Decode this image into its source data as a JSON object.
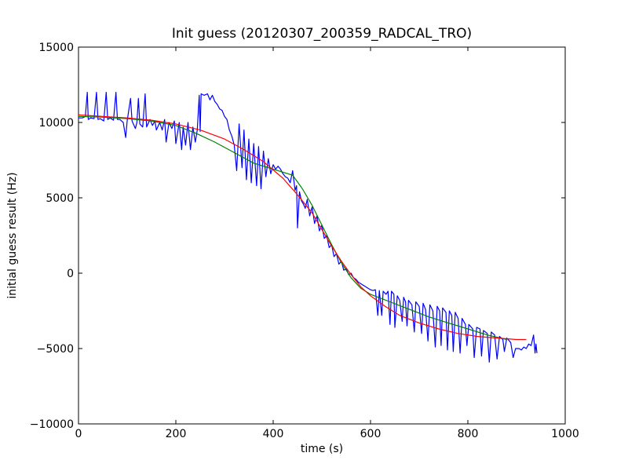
{
  "chart_data": {
    "type": "line",
    "title": "Init guess (20120307_200359_RADCAL_TRO)",
    "xlabel": "time (s)",
    "ylabel": "initial guess result (Hz)",
    "xlim": [
      0,
      1000
    ],
    "ylim": [
      -10000,
      15000
    ],
    "xticks": [
      0,
      200,
      400,
      600,
      800,
      1000
    ],
    "yticks": [
      -10000,
      -5000,
      0,
      5000,
      10000,
      15000
    ],
    "grid": false,
    "series": [
      {
        "color": "#0000ff",
        "points": [
          [
            0,
            10300
          ],
          [
            8,
            10300
          ],
          [
            14,
            10400
          ],
          [
            18,
            12000
          ],
          [
            20,
            10200
          ],
          [
            25,
            10300
          ],
          [
            32,
            10250
          ],
          [
            37,
            12000
          ],
          [
            40,
            10200
          ],
          [
            45,
            10250
          ],
          [
            52,
            10100
          ],
          [
            57,
            12000
          ],
          [
            60,
            10200
          ],
          [
            65,
            10300
          ],
          [
            72,
            10150
          ],
          [
            77,
            12000
          ],
          [
            80,
            10200
          ],
          [
            85,
            10200
          ],
          [
            92,
            10000
          ],
          [
            97,
            9000
          ],
          [
            100,
            10100
          ],
          [
            107,
            11600
          ],
          [
            110,
            10100
          ],
          [
            117,
            9600
          ],
          [
            120,
            10000
          ],
          [
            123,
            11600
          ],
          [
            126,
            9900
          ],
          [
            132,
            9700
          ],
          [
            137,
            11900
          ],
          [
            140,
            9700
          ],
          [
            147,
            10200
          ],
          [
            152,
            9800
          ],
          [
            157,
            10100
          ],
          [
            160,
            9500
          ],
          [
            167,
            10000
          ],
          [
            172,
            9500
          ],
          [
            177,
            10200
          ],
          [
            180,
            8700
          ],
          [
            186,
            10000
          ],
          [
            192,
            9600
          ],
          [
            197,
            10100
          ],
          [
            200,
            8600
          ],
          [
            207,
            10000
          ],
          [
            212,
            8200
          ],
          [
            215,
            9700
          ],
          [
            220,
            8500
          ],
          [
            225,
            10000
          ],
          [
            230,
            8200
          ],
          [
            235,
            9700
          ],
          [
            240,
            8700
          ],
          [
            244,
            9500
          ],
          [
            248,
            11800
          ],
          [
            250,
            9400
          ],
          [
            252,
            11900
          ],
          [
            258,
            11800
          ],
          [
            265,
            11900
          ],
          [
            270,
            11500
          ],
          [
            275,
            11800
          ],
          [
            280,
            11400
          ],
          [
            285,
            11200
          ],
          [
            290,
            10900
          ],
          [
            295,
            10800
          ],
          [
            300,
            10400
          ],
          [
            305,
            10200
          ],
          [
            310,
            9500
          ],
          [
            315,
            9100
          ],
          [
            320,
            8500
          ],
          [
            325,
            6800
          ],
          [
            330,
            9900
          ],
          [
            336,
            7000
          ],
          [
            340,
            9500
          ],
          [
            345,
            6200
          ],
          [
            350,
            8900
          ],
          [
            355,
            6000
          ],
          [
            360,
            8600
          ],
          [
            366,
            5800
          ],
          [
            370,
            8400
          ],
          [
            375,
            5600
          ],
          [
            380,
            8100
          ],
          [
            385,
            6400
          ],
          [
            390,
            7600
          ],
          [
            395,
            6600
          ],
          [
            400,
            7200
          ],
          [
            405,
            6900
          ],
          [
            410,
            7100
          ],
          [
            415,
            6900
          ],
          [
            420,
            6600
          ],
          [
            425,
            6400
          ],
          [
            430,
            6300
          ],
          [
            435,
            6000
          ],
          [
            440,
            6800
          ],
          [
            445,
            5500
          ],
          [
            448,
            5800
          ],
          [
            450,
            3000
          ],
          [
            454,
            5400
          ],
          [
            458,
            4800
          ],
          [
            462,
            4600
          ],
          [
            466,
            4300
          ],
          [
            470,
            4900
          ],
          [
            475,
            3800
          ],
          [
            480,
            4400
          ],
          [
            485,
            3300
          ],
          [
            490,
            3800
          ],
          [
            495,
            2800
          ],
          [
            500,
            3200
          ],
          [
            505,
            2300
          ],
          [
            510,
            2500
          ],
          [
            515,
            1700
          ],
          [
            520,
            1900
          ],
          [
            525,
            1100
          ],
          [
            530,
            1300
          ],
          [
            535,
            600
          ],
          [
            540,
            800
          ],
          [
            545,
            200
          ],
          [
            550,
            300
          ],
          [
            555,
            -100
          ],
          [
            560,
            0
          ],
          [
            565,
            -300
          ],
          [
            570,
            -400
          ],
          [
            575,
            -600
          ],
          [
            580,
            -700
          ],
          [
            585,
            -800
          ],
          [
            590,
            -900
          ],
          [
            595,
            -1000
          ],
          [
            600,
            -1100
          ],
          [
            605,
            -1150
          ],
          [
            610,
            -1100
          ],
          [
            615,
            -2800
          ],
          [
            618,
            -1150
          ],
          [
            623,
            -2800
          ],
          [
            626,
            -1200
          ],
          [
            632,
            -1400
          ],
          [
            636,
            -1200
          ],
          [
            640,
            -3400
          ],
          [
            643,
            -1200
          ],
          [
            648,
            -1400
          ],
          [
            650,
            -3600
          ],
          [
            655,
            -1500
          ],
          [
            660,
            -1800
          ],
          [
            665,
            -3200
          ],
          [
            668,
            -1600
          ],
          [
            672,
            -1900
          ],
          [
            675,
            -3500
          ],
          [
            678,
            -1800
          ],
          [
            685,
            -2100
          ],
          [
            690,
            -3900
          ],
          [
            693,
            -1900
          ],
          [
            700,
            -2200
          ],
          [
            705,
            -4000
          ],
          [
            708,
            -2000
          ],
          [
            713,
            -2400
          ],
          [
            718,
            -4500
          ],
          [
            722,
            -2100
          ],
          [
            728,
            -2500
          ],
          [
            733,
            -4900
          ],
          [
            737,
            -2200
          ],
          [
            742,
            -2500
          ],
          [
            745,
            -4800
          ],
          [
            748,
            -2300
          ],
          [
            755,
            -2600
          ],
          [
            758,
            -5100
          ],
          [
            762,
            -2500
          ],
          [
            767,
            -2800
          ],
          [
            770,
            -5200
          ],
          [
            774,
            -2600
          ],
          [
            780,
            -3000
          ],
          [
            784,
            -5300
          ],
          [
            788,
            -3000
          ],
          [
            795,
            -3400
          ],
          [
            798,
            -4800
          ],
          [
            802,
            -3400
          ],
          [
            810,
            -3700
          ],
          [
            813,
            -5600
          ],
          [
            818,
            -3600
          ],
          [
            825,
            -3700
          ],
          [
            828,
            -5500
          ],
          [
            832,
            -3800
          ],
          [
            840,
            -4000
          ],
          [
            844,
            -5900
          ],
          [
            848,
            -3900
          ],
          [
            855,
            -4100
          ],
          [
            860,
            -5700
          ],
          [
            865,
            -4200
          ],
          [
            872,
            -4400
          ],
          [
            875,
            -5200
          ],
          [
            880,
            -4300
          ],
          [
            888,
            -4600
          ],
          [
            893,
            -5600
          ],
          [
            898,
            -5000
          ],
          [
            905,
            -5000
          ],
          [
            910,
            -5100
          ],
          [
            915,
            -4900
          ],
          [
            920,
            -5000
          ],
          [
            925,
            -4700
          ],
          [
            930,
            -4800
          ],
          [
            935,
            -4100
          ],
          [
            938,
            -5300
          ],
          [
            940,
            -4700
          ],
          [
            942,
            -5300
          ]
        ]
      },
      {
        "color": "#008000",
        "points": [
          [
            0,
            10400
          ],
          [
            50,
            10350
          ],
          [
            100,
            10250
          ],
          [
            150,
            10100
          ],
          [
            200,
            9800
          ],
          [
            240,
            9300
          ],
          [
            280,
            8700
          ],
          [
            320,
            8000
          ],
          [
            360,
            7300
          ],
          [
            400,
            6900
          ],
          [
            440,
            6500
          ],
          [
            460,
            5600
          ],
          [
            480,
            4500
          ],
          [
            500,
            3200
          ],
          [
            520,
            1900
          ],
          [
            540,
            700
          ],
          [
            560,
            -300
          ],
          [
            580,
            -1000
          ],
          [
            600,
            -1400
          ],
          [
            640,
            -1900
          ],
          [
            680,
            -2400
          ],
          [
            720,
            -2900
          ],
          [
            760,
            -3300
          ],
          [
            800,
            -3700
          ],
          [
            840,
            -4100
          ],
          [
            880,
            -4400
          ]
        ]
      },
      {
        "color": "#ff0000",
        "points": [
          [
            0,
            10500
          ],
          [
            50,
            10400
          ],
          [
            100,
            10300
          ],
          [
            150,
            10150
          ],
          [
            200,
            9900
          ],
          [
            250,
            9500
          ],
          [
            300,
            8900
          ],
          [
            340,
            8200
          ],
          [
            380,
            7400
          ],
          [
            420,
            6300
          ],
          [
            450,
            5200
          ],
          [
            480,
            4000
          ],
          [
            500,
            2900
          ],
          [
            520,
            1800
          ],
          [
            540,
            800
          ],
          [
            560,
            -100
          ],
          [
            580,
            -900
          ],
          [
            600,
            -1500
          ],
          [
            630,
            -2200
          ],
          [
            660,
            -2800
          ],
          [
            700,
            -3300
          ],
          [
            740,
            -3700
          ],
          [
            780,
            -4000
          ],
          [
            820,
            -4200
          ],
          [
            860,
            -4300
          ],
          [
            900,
            -4400
          ],
          [
            920,
            -4400
          ]
        ]
      }
    ]
  }
}
